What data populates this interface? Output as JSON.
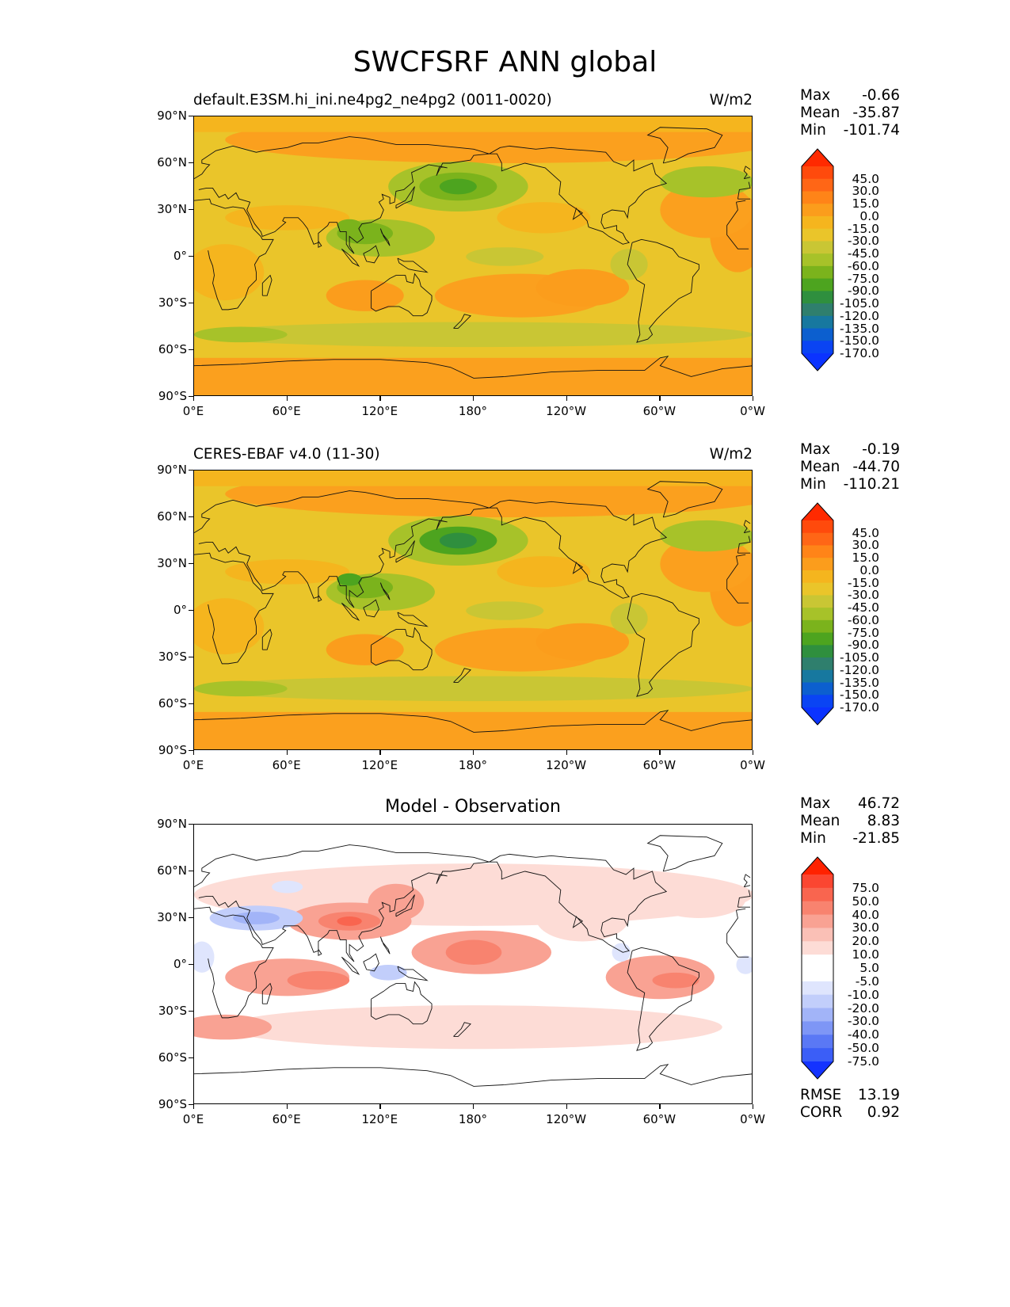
{
  "title": "SWCFSRF ANN global",
  "lat_labels": [
    "90°N",
    "60°N",
    "30°N",
    "0°",
    "30°S",
    "60°S",
    "90°S"
  ],
  "lon_labels": [
    "0°E",
    "60°E",
    "120°E",
    "180°",
    "120°W",
    "60°W",
    "0°W"
  ],
  "panels": [
    {
      "title_left": "default.E3SM.hi_ini.ne4pg2_ne4pg2 (0011-0020)",
      "title_right": "W/m2",
      "stats": {
        "max_label": "Max",
        "max": "-0.66",
        "mean_label": "Mean",
        "mean": "-35.87",
        "min_label": "Min",
        "min": "-101.74"
      },
      "colorbar": {
        "labels": [
          "45.0",
          "30.0",
          "15.0",
          "0.0",
          "-15.0",
          "-30.0",
          "-45.0",
          "-60.0",
          "-75.0",
          "-90.0",
          "-105.0",
          "-120.0",
          "-135.0",
          "-150.0",
          "-170.0"
        ],
        "colors": [
          "#ff2a00",
          "#ff4a0c",
          "#ff6616",
          "#ff8418",
          "#fb9d1c",
          "#f5b51e",
          "#eac52a",
          "#c9c634",
          "#a7c229",
          "#7bb31c",
          "#4da41f",
          "#2f8f3e",
          "#2f7f6d",
          "#17789f",
          "#0c5fcf",
          "#0a44f3",
          "#0b33ff"
        ]
      }
    },
    {
      "title_left": "CERES-EBAF v4.0 (11-30)",
      "title_right": "W/m2",
      "stats": {
        "max_label": "Max",
        "max": "-0.19",
        "mean_label": "Mean",
        "mean": "-44.70",
        "min_label": "Min",
        "min": "-110.21"
      },
      "colorbar": {
        "labels": [
          "45.0",
          "30.0",
          "15.0",
          "0.0",
          "-15.0",
          "-30.0",
          "-45.0",
          "-60.0",
          "-75.0",
          "-90.0",
          "-105.0",
          "-120.0",
          "-135.0",
          "-150.0",
          "-170.0"
        ],
        "colors": [
          "#ff2a00",
          "#ff4a0c",
          "#ff6616",
          "#ff8418",
          "#fb9d1c",
          "#f5b51e",
          "#eac52a",
          "#c9c634",
          "#a7c229",
          "#7bb31c",
          "#4da41f",
          "#2f8f3e",
          "#2f7f6d",
          "#17789f",
          "#0c5fcf",
          "#0a44f3",
          "#0b33ff"
        ]
      }
    },
    {
      "title_center": "Model - Observation",
      "stats": {
        "max_label": "Max",
        "max": "46.72",
        "mean_label": "Mean",
        "mean": "8.83",
        "min_label": "Min",
        "min": "-21.85"
      },
      "extra_stats": {
        "rmse_label": "RMSE",
        "rmse": "13.19",
        "corr_label": "CORR",
        "corr": "0.92"
      },
      "colorbar": {
        "labels": [
          "75.0",
          "50.0",
          "40.0",
          "30.0",
          "20.0",
          "10.0",
          "5.0",
          "-5.0",
          "-10.0",
          "-20.0",
          "-30.0",
          "-40.0",
          "-50.0",
          "-75.0"
        ],
        "colors": [
          "#ff2200",
          "#fb4631",
          "#f9654f",
          "#f8836f",
          "#f9a293",
          "#fac0b6",
          "#fddcd6",
          "#ffffff",
          "#ffffff",
          "#dfe5fd",
          "#c2cefb",
          "#a2b4f8",
          "#7e96f6",
          "#5a78f5",
          "#3b5ef7",
          "#1433ff"
        ]
      }
    }
  ]
}
